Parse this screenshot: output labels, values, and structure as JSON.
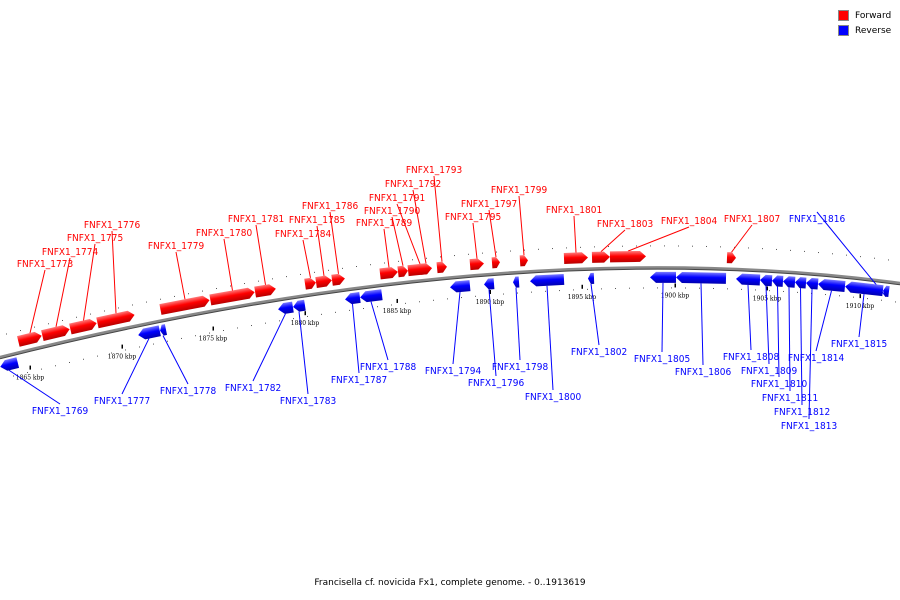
{
  "caption": "Francisella cf. novicida Fx1, complete genome. - 0..1913619",
  "legend": [
    {
      "label": "Forward",
      "color": "#ff0000"
    },
    {
      "label": "Reverse",
      "color": "#0000ff"
    }
  ],
  "colors": {
    "forward": "#ff0000",
    "reverse": "#0000ff",
    "backbone": "#888888"
  },
  "ticks": [
    "1865 kbp",
    "1870 kbp",
    "1875 kbp",
    "1880 kbp",
    "1885 kbp",
    "1890 kbp",
    "1895 kbp",
    "1900 kbp",
    "1905 kbp",
    "1910 kbp"
  ],
  "genes": [
    {
      "name": "FNFX1_1769",
      "strand": "reverse"
    },
    {
      "name": "FNFX1_1773",
      "strand": "forward"
    },
    {
      "name": "FNFX1_1774",
      "strand": "forward"
    },
    {
      "name": "FNFX1_1775",
      "strand": "forward"
    },
    {
      "name": "FNFX1_1776",
      "strand": "forward"
    },
    {
      "name": "FNFX1_1777",
      "strand": "reverse"
    },
    {
      "name": "FNFX1_1778",
      "strand": "reverse"
    },
    {
      "name": "FNFX1_1779",
      "strand": "forward"
    },
    {
      "name": "FNFX1_1780",
      "strand": "forward"
    },
    {
      "name": "FNFX1_1781",
      "strand": "forward"
    },
    {
      "name": "FNFX1_1782",
      "strand": "reverse"
    },
    {
      "name": "FNFX1_1783",
      "strand": "reverse"
    },
    {
      "name": "FNFX1_1784",
      "strand": "forward"
    },
    {
      "name": "FNFX1_1785",
      "strand": "forward"
    },
    {
      "name": "FNFX1_1786",
      "strand": "forward"
    },
    {
      "name": "FNFX1_1787",
      "strand": "reverse"
    },
    {
      "name": "FNFX1_1788",
      "strand": "reverse"
    },
    {
      "name": "FNFX1_1789",
      "strand": "forward"
    },
    {
      "name": "FNFX1_1790",
      "strand": "forward"
    },
    {
      "name": "FNFX1_1791",
      "strand": "forward"
    },
    {
      "name": "FNFX1_1792",
      "strand": "forward"
    },
    {
      "name": "FNFX1_1793",
      "strand": "forward"
    },
    {
      "name": "FNFX1_1794",
      "strand": "reverse"
    },
    {
      "name": "FNFX1_1795",
      "strand": "forward"
    },
    {
      "name": "FNFX1_1796",
      "strand": "reverse"
    },
    {
      "name": "FNFX1_1797",
      "strand": "forward"
    },
    {
      "name": "FNFX1_1798",
      "strand": "reverse"
    },
    {
      "name": "FNFX1_1799",
      "strand": "forward"
    },
    {
      "name": "FNFX1_1800",
      "strand": "reverse"
    },
    {
      "name": "FNFX1_1801",
      "strand": "forward"
    },
    {
      "name": "FNFX1_1802",
      "strand": "reverse"
    },
    {
      "name": "FNFX1_1803",
      "strand": "forward"
    },
    {
      "name": "FNFX1_1804",
      "strand": "forward"
    },
    {
      "name": "FNFX1_1805",
      "strand": "reverse"
    },
    {
      "name": "FNFX1_1806",
      "strand": "reverse"
    },
    {
      "name": "FNFX1_1807",
      "strand": "forward"
    },
    {
      "name": "FNFX1_1808",
      "strand": "reverse"
    },
    {
      "name": "FNFX1_1809",
      "strand": "reverse"
    },
    {
      "name": "FNFX1_1810",
      "strand": "reverse"
    },
    {
      "name": "FNFX1_1811",
      "strand": "reverse"
    },
    {
      "name": "FNFX1_1812",
      "strand": "reverse"
    },
    {
      "name": "FNFX1_1813",
      "strand": "reverse"
    },
    {
      "name": "FNFX1_1814",
      "strand": "reverse"
    },
    {
      "name": "FNFX1_1815",
      "strand": "reverse"
    },
    {
      "name": "FNFX1_1816",
      "strand": "reverse"
    }
  ]
}
